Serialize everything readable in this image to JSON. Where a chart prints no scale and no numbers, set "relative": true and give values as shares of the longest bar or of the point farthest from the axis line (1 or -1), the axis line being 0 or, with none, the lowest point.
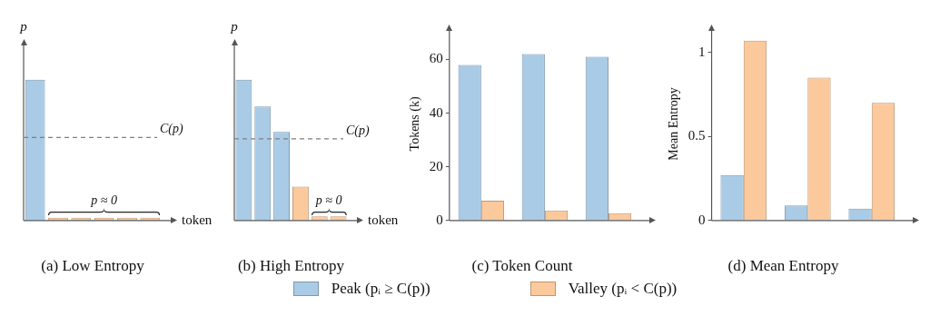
{
  "chart_data": [
    {
      "type": "bar",
      "title": "(a) Low Entropy",
      "xlabel": "token",
      "ylabel": "p",
      "relative": true,
      "categories": [
        null,
        null,
        null,
        null,
        null,
        null
      ],
      "values": [
        1,
        0.02,
        0.02,
        0.02,
        0.02,
        0.02
      ],
      "colors": [
        "#a9cbe6",
        "#fbc99c",
        "#fbc99c",
        "#fbc99c",
        "#fbc99c",
        "#fbc99c"
      ],
      "ref_lines": [
        {
          "axis": "y",
          "value": 0.59,
          "label": "C(p)",
          "color": "#808080",
          "line_style": "dashed"
        }
      ],
      "annotations": [
        "p ≈ 0"
      ],
      "grid": false,
      "legend": false
    },
    {
      "type": "bar",
      "title": "(b) High Entropy",
      "xlabel": "token",
      "ylabel": "p",
      "relative": true,
      "categories": [
        null,
        null,
        null,
        null,
        null,
        null
      ],
      "values": [
        1,
        0.81,
        0.63,
        0.24,
        0.03,
        0.03
      ],
      "colors": [
        "#a9cbe6",
        "#a9cbe6",
        "#a9cbe6",
        "#fbc99c",
        "#fbc99c",
        "#fbc99c"
      ],
      "ref_lines": [
        {
          "axis": "y",
          "value": 0.58,
          "label": "C(p)",
          "color": "#808080",
          "line_style": "dashed"
        }
      ],
      "annotations": [
        "p ≈ 0"
      ],
      "grid": false,
      "legend": false
    },
    {
      "type": "bar",
      "title": "(c) Token Count",
      "ylabel": "Tokens (k)",
      "categories": [
        null,
        null,
        null
      ],
      "ylim": [
        0,
        72
      ],
      "yticks": [
        0,
        20,
        40,
        60
      ],
      "grid": false,
      "legend": "bottom",
      "series": [
        {
          "name": "Peak (pᵢ ≥ C(p))",
          "color": "#a9cbe6",
          "values": [
            58,
            62,
            61
          ]
        },
        {
          "name": "Valley (pᵢ < C(p))",
          "color": "#fbc99c",
          "values": [
            7.4,
            3.7,
            2.7
          ]
        }
      ]
    },
    {
      "type": "bar",
      "title": "(d) Mean Entropy",
      "ylabel": "Mean Entropy",
      "categories": [
        null,
        null,
        null
      ],
      "ylim": [
        0,
        1.15
      ],
      "yticks": [
        0,
        0.5,
        1
      ],
      "grid": false,
      "legend": false,
      "series": [
        {
          "color": "#a9cbe6",
          "values": [
            0.27,
            0.09,
            0.07
          ]
        },
        {
          "color": "#fbc99c",
          "values": [
            1.07,
            0.85,
            0.7
          ]
        }
      ]
    }
  ]
}
